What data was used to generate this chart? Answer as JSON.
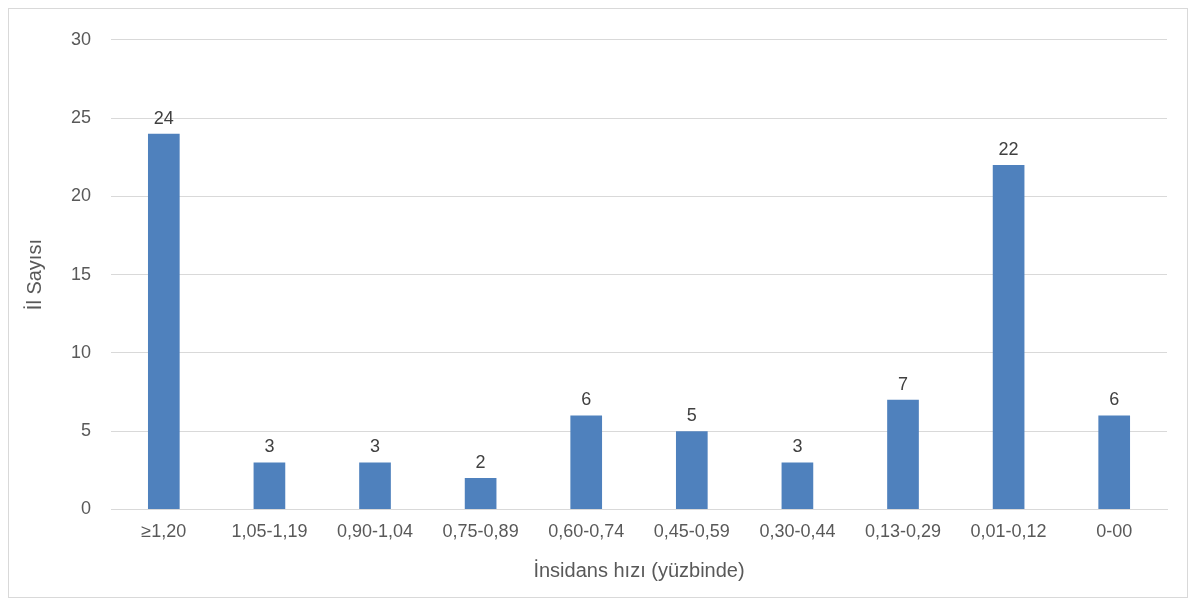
{
  "chart_data": {
    "type": "bar",
    "xlabel": "İnsidans hızı (yüzbinde)",
    "ylabel": "İl Sayısı",
    "categories": [
      "≥1,20",
      "1,05-1,19",
      "0,90-1,04",
      "0,75-0,89",
      "0,60-0,74",
      "0,45-0,59",
      "0,30-0,44",
      "0,13-0,29",
      "0,01-0,12",
      "0-00"
    ],
    "values": [
      24,
      3,
      3,
      2,
      6,
      5,
      3,
      7,
      22,
      6
    ],
    "color": "#4f81bd",
    "ylim": [
      0,
      30
    ],
    "yticks": [
      0,
      5,
      10,
      15,
      20,
      25,
      30
    ],
    "grid": "y",
    "data_labels": true,
    "legend": false
  }
}
